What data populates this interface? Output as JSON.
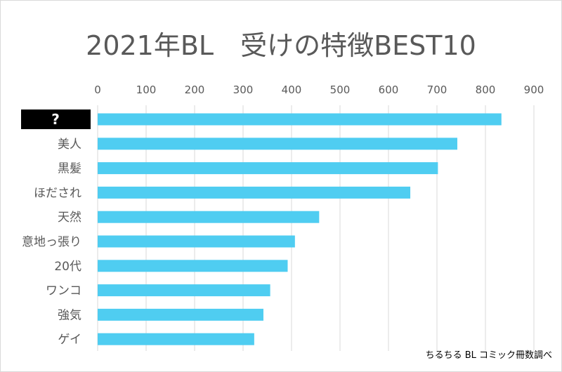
{
  "chart_data": {
    "type": "bar",
    "orientation": "horizontal",
    "title": "2021年BL　受けの特徴BEST10",
    "categories": [
      "?",
      "美人",
      "黒髪",
      "ほだされ",
      "天然",
      "意地っ張り",
      "20代",
      "ワンコ",
      "強気",
      "ゲイ"
    ],
    "values": [
      833,
      742,
      702,
      645,
      457,
      407,
      392,
      356,
      342,
      323
    ],
    "xlim": [
      0,
      900
    ],
    "xticks": [
      0,
      100,
      200,
      300,
      400,
      500,
      600,
      700,
      800,
      900
    ],
    "xaxis_position": "top",
    "grid": true,
    "bar_color": "#4fcdf1",
    "grid_color": "#d9d9d9",
    "first_label_style": "white text on black box"
  },
  "source_note": "ちるちる BL コミック冊数調べ"
}
